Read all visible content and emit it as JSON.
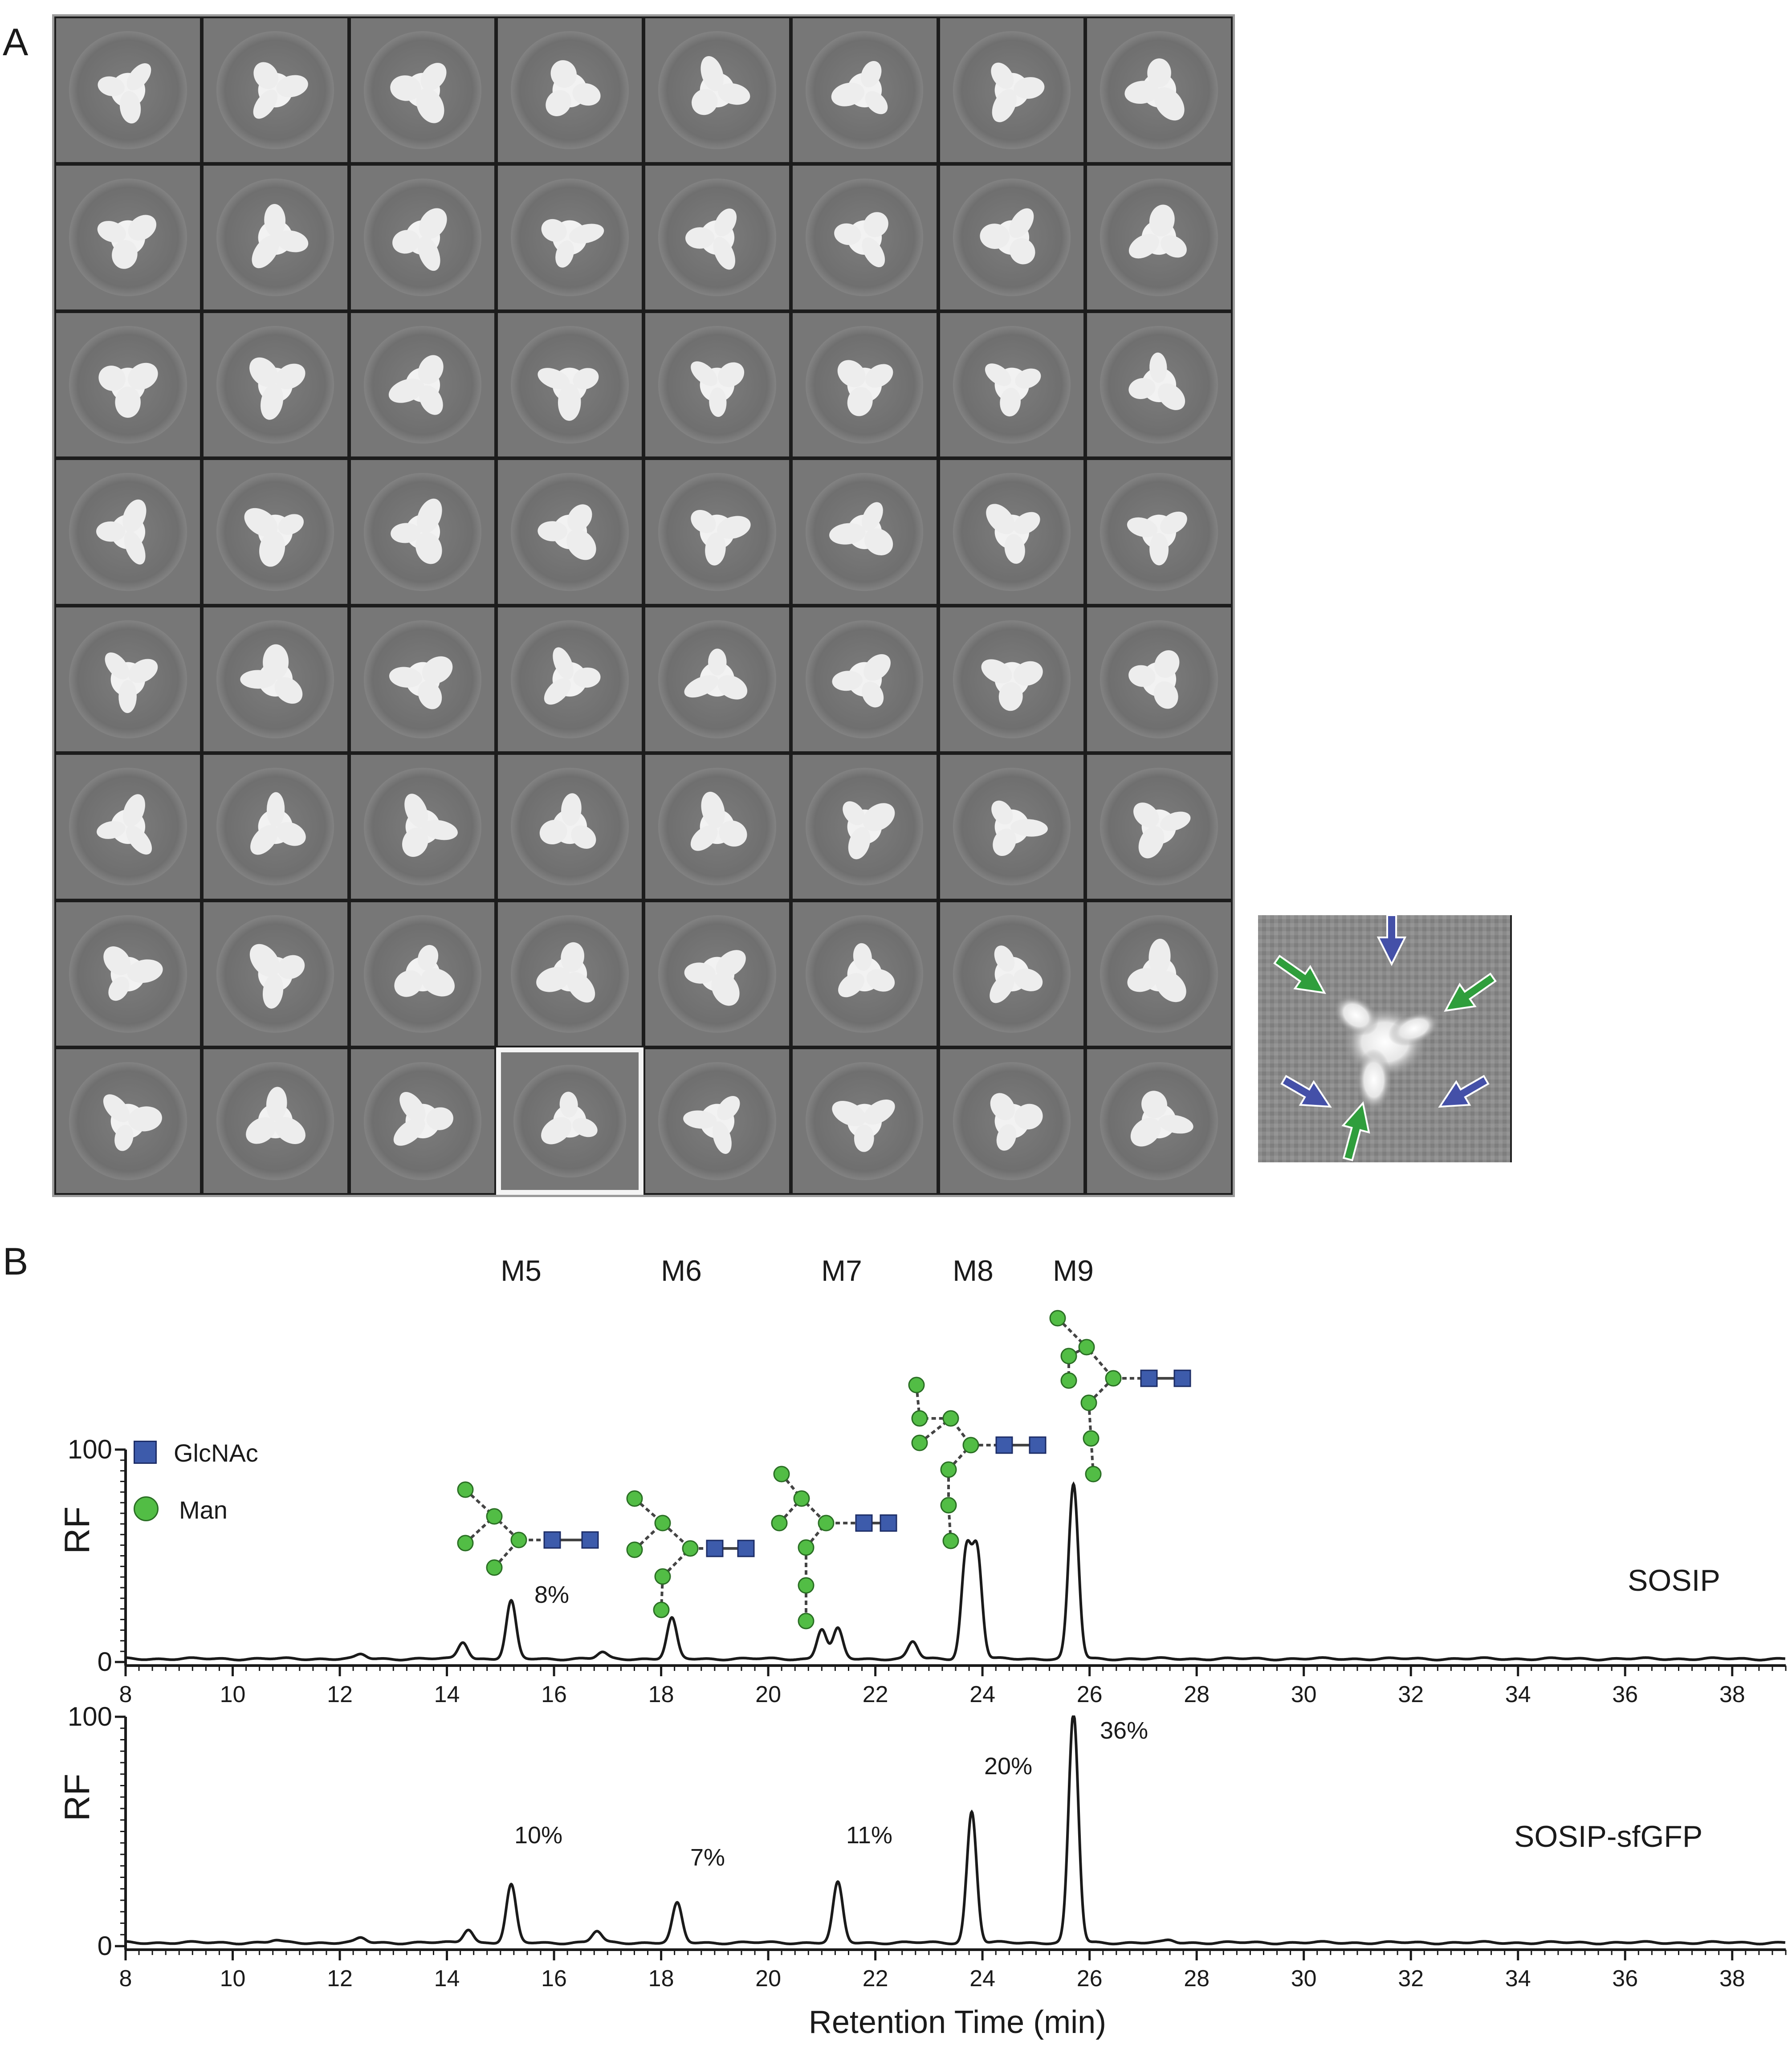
{
  "panel_a": {
    "label": "A"
  },
  "panel_b": {
    "label": "B"
  },
  "glycans": [
    "M5",
    "M6",
    "M7",
    "M8",
    "M9"
  ],
  "legend": {
    "glcnac": "GlcNAc",
    "man": "Man"
  },
  "colors": {
    "glcnac": "#3d5bab",
    "man": "#52bd45",
    "arrow_blue": "#4450a8",
    "arrow_green": "#2f9e3c",
    "trace": "#1a1a1a"
  },
  "chart_data": [
    {
      "type": "line",
      "name": "SOSIP",
      "ylabel": "RF",
      "xlim": [
        8,
        39
      ],
      "ylim": [
        0,
        100
      ],
      "xticks": [
        "8",
        "10",
        "12",
        "14",
        "16",
        "18",
        "20",
        "22",
        "24",
        "26",
        "28",
        "30",
        "32",
        "34",
        "36",
        "38"
      ],
      "yticks": [
        "0",
        "100"
      ],
      "peaks": [
        {
          "x": 12.4,
          "y": 2
        },
        {
          "x": 14.3,
          "y": 8
        },
        {
          "x": 15.2,
          "y": 27,
          "label": "8%"
        },
        {
          "x": 16.9,
          "y": 3
        },
        {
          "x": 18.2,
          "y": 19
        },
        {
          "x": 21.0,
          "y": 14
        },
        {
          "x": 21.3,
          "y": 14
        },
        {
          "x": 22.7,
          "y": 8
        },
        {
          "x": 23.7,
          "y": 50
        },
        {
          "x": 23.9,
          "y": 50
        },
        {
          "x": 25.7,
          "y": 82
        }
      ],
      "sample_label": "SOSIP"
    },
    {
      "type": "line",
      "name": "SOSIP-sfGFP",
      "ylabel": "RF",
      "xlabel": "Retention Time (min)",
      "xlim": [
        8,
        39
      ],
      "ylim": [
        0,
        100
      ],
      "xticks": [
        "8",
        "10",
        "12",
        "14",
        "16",
        "18",
        "20",
        "22",
        "24",
        "26",
        "28",
        "30",
        "32",
        "34",
        "36",
        "38"
      ],
      "yticks": [
        "0",
        "100"
      ],
      "peaks": [
        {
          "x": 10.8,
          "y": 1
        },
        {
          "x": 12.4,
          "y": 2
        },
        {
          "x": 14.4,
          "y": 6
        },
        {
          "x": 15.2,
          "y": 25,
          "label": "10%"
        },
        {
          "x": 16.8,
          "y": 5
        },
        {
          "x": 18.3,
          "y": 17,
          "label": "7%"
        },
        {
          "x": 21.3,
          "y": 26,
          "label": "11%"
        },
        {
          "x": 23.8,
          "y": 57,
          "label": "20%"
        },
        {
          "x": 25.7,
          "y": 100,
          "label": "36%"
        },
        {
          "x": 27.5,
          "y": 1
        }
      ],
      "sample_label": "SOSIP-sfGFP"
    }
  ]
}
